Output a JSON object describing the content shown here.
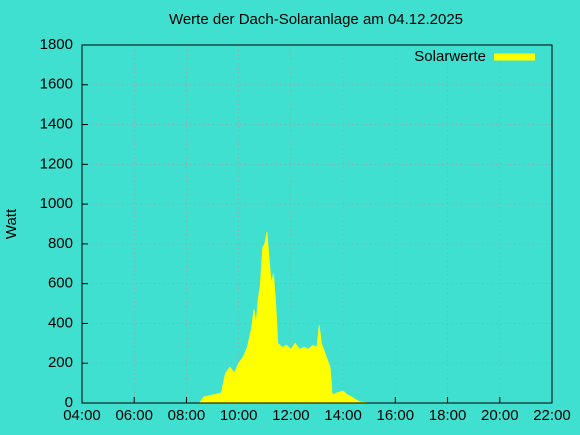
{
  "chart_data": {
    "type": "area",
    "title": "Werte der Dach-Solaranlage am 04.12.2025",
    "y_label": "Watt",
    "x": [
      "08:30",
      "08:40",
      "09:00",
      "09:20",
      "09:30",
      "09:40",
      "09:50",
      "10:00",
      "10:10",
      "10:20",
      "10:30",
      "10:35",
      "10:40",
      "10:45",
      "10:50",
      "10:55",
      "11:00",
      "11:05",
      "11:10",
      "11:15",
      "11:20",
      "11:25",
      "11:30",
      "11:40",
      "11:50",
      "12:00",
      "12:10",
      "12:20",
      "12:30",
      "12:40",
      "12:50",
      "13:00",
      "13:05",
      "13:10",
      "13:20",
      "13:30",
      "13:35",
      "13:45",
      "14:00",
      "14:10",
      "14:20",
      "14:30",
      "14:40",
      "15:00"
    ],
    "series": [
      {
        "name": "Solarwerte",
        "color": "#ffff00",
        "values": [
          0,
          30,
          40,
          50,
          150,
          180,
          150,
          200,
          230,
          280,
          380,
          470,
          400,
          520,
          600,
          780,
          800,
          860,
          720,
          600,
          650,
          500,
          300,
          280,
          290,
          270,
          300,
          270,
          280,
          270,
          290,
          280,
          390,
          300,
          240,
          180,
          40,
          50,
          60,
          40,
          30,
          15,
          5,
          0
        ]
      }
    ],
    "xlim": [
      "04:00",
      "22:00"
    ],
    "xticks": [
      "04:00",
      "06:00",
      "08:00",
      "10:00",
      "12:00",
      "14:00",
      "16:00",
      "18:00",
      "20:00",
      "22:00"
    ],
    "ylim": [
      0,
      1800
    ],
    "yticks": [
      0,
      200,
      400,
      600,
      800,
      1000,
      1200,
      1400,
      1600,
      1800
    ],
    "grid": true,
    "legend": "top-right"
  }
}
